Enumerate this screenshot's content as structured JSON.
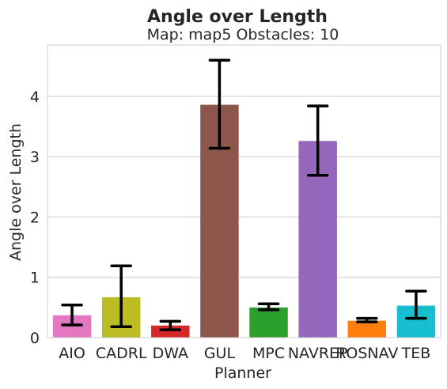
{
  "chart_data": {
    "type": "bar",
    "title": "Angle over Length",
    "subtitle": "Map: map5 Obstacles: 10",
    "xlabel": "Planner",
    "ylabel": "Angle over Length",
    "categories": [
      "AIO",
      "CADRL",
      "DWA",
      "GUL",
      "MPC",
      "NAVREP",
      "ROSNAV",
      "TEB"
    ],
    "values": [
      0.37,
      0.67,
      0.2,
      3.86,
      0.5,
      3.26,
      0.28,
      0.53
    ],
    "error_low": [
      0.21,
      0.18,
      0.13,
      3.14,
      0.46,
      2.69,
      0.26,
      0.32
    ],
    "error_high": [
      0.54,
      1.19,
      0.27,
      4.6,
      0.56,
      3.84,
      0.32,
      0.77
    ],
    "colors": [
      "#e377c2",
      "#bcbd22",
      "#d62728",
      "#8c564b",
      "#2ca02c",
      "#9467bd",
      "#ff7f0e",
      "#17becf"
    ],
    "ylim": [
      0,
      4.85
    ],
    "yticks": [
      0,
      1,
      2,
      3,
      4
    ],
    "grid": true,
    "legend": "none"
  }
}
